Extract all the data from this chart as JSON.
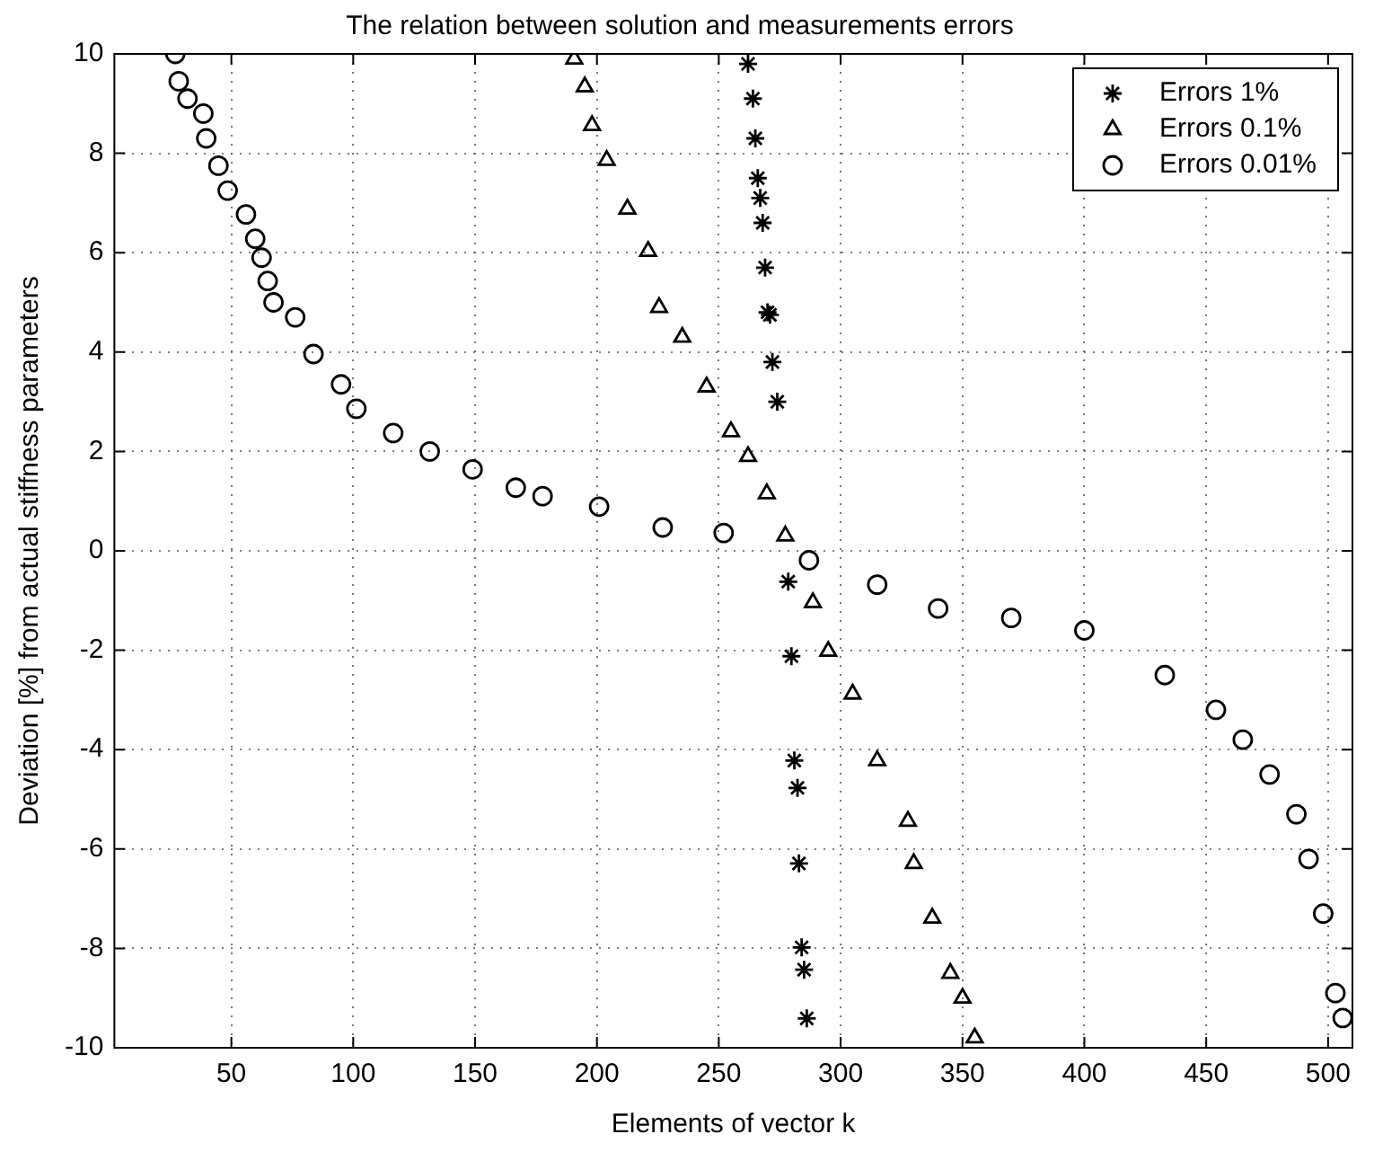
{
  "chart_data": {
    "type": "scatter",
    "title": "The relation between solution and measurements errors",
    "xlabel": "Elements of vector k",
    "ylabel": "Deviation [%] from actual stiffness parameters",
    "xlim": [
      2,
      510
    ],
    "xticks": [
      50,
      100,
      150,
      200,
      250,
      300,
      350,
      400,
      450,
      500
    ],
    "ylim": [
      -10,
      10
    ],
    "yticks": [
      -10,
      -8,
      -6,
      -4,
      -2,
      0,
      2,
      4,
      6,
      8,
      10
    ],
    "grid": true,
    "legend": "top right",
    "series": [
      {
        "name": "Errors 1%",
        "color": "#000000",
        "marker": "cross",
        "x": [
          262,
          264,
          265,
          266,
          267,
          268,
          269,
          270,
          271,
          272,
          274,
          278.5,
          279.8,
          281,
          282.3,
          282.9,
          284,
          285,
          286.1
        ],
        "values": [
          9.8,
          9.1,
          8.3,
          7.5,
          7.1,
          6.6,
          5.7,
          4.8,
          4.75,
          3.8,
          3.0,
          -0.62,
          -2.12,
          -4.22,
          -4.77,
          -6.29,
          -7.98,
          -8.43,
          -9.41
        ]
      },
      {
        "name": "Errors 0.1%",
        "color": "#000000",
        "marker": "triangle",
        "x": [
          190.7,
          195,
          198,
          204,
          212.5,
          221,
          225.5,
          235,
          245,
          255,
          262,
          269.7,
          277.3,
          288.6,
          294.9,
          304.9,
          315,
          327.6,
          330,
          337.6,
          345,
          350,
          355
        ],
        "values": [
          9.9,
          9.34,
          8.56,
          7.86,
          6.88,
          6.03,
          4.9,
          4.3,
          3.3,
          2.4,
          1.9,
          1.15,
          0.3,
          -1.04,
          -2.02,
          -2.88,
          -4.22,
          -5.44,
          -6.29,
          -7.39,
          -8.5,
          -9.0,
          -9.8
        ]
      },
      {
        "name": "Errors 0.01%",
        "color": "#000000",
        "marker": "circle",
        "x": [
          27,
          28.4,
          32,
          38.5,
          39.7,
          44.7,
          48.5,
          56,
          59.8,
          62.4,
          64.9,
          67.3,
          76.2,
          83.7,
          95,
          101.3,
          116.4,
          131.4,
          149,
          166.7,
          177.7,
          200.9,
          227,
          252,
          287,
          315,
          340,
          370,
          400,
          433,
          454,
          465,
          476,
          487,
          492,
          498,
          503,
          506
        ],
        "values": [
          10,
          9.45,
          9.1,
          8.8,
          8.3,
          7.75,
          7.25,
          6.77,
          6.28,
          5.9,
          5.43,
          5.0,
          4.7,
          3.96,
          3.35,
          2.86,
          2.37,
          2.0,
          1.64,
          1.27,
          1.1,
          0.89,
          0.47,
          0.36,
          -0.19,
          -0.68,
          -1.16,
          -1.35,
          -1.6,
          -2.5,
          -3.2,
          -3.8,
          -4.5,
          -5.3,
          -6.2,
          -7.3,
          -8.9,
          -9.4
        ]
      }
    ]
  }
}
